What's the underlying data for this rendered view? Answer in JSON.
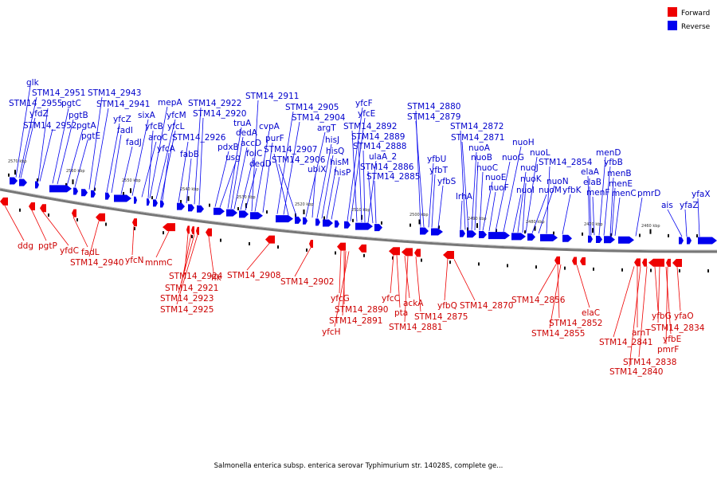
{
  "legend": {
    "forward": "Forward",
    "reverse": "Reverse",
    "forward_color": "#ee0000",
    "reverse_color": "#0000ee"
  },
  "caption": "Salmonella enterica subsp. enterica serovar Typhimurium str. 14028S, complete ge...",
  "ticks": [
    "2570 kbp",
    "2560 kbp",
    "2550 kbp",
    "2540 kbp",
    "2530 kbp",
    "2520 kbp",
    "2510 kbp",
    "2500 kbp",
    "2490 kbp",
    "2480 kbp",
    "2470 kbp",
    "2460 kbp"
  ],
  "reverse_labels": [
    "glk",
    "STM14_2951",
    "yfdZ",
    "STM14_2955",
    "pgtC",
    "pgtB",
    "STM14_2952",
    "pgtA",
    "pgtE",
    "STM14_2943",
    "STM14_2941",
    "yfcZ",
    "fadI",
    "fadJ",
    "sixA",
    "aroC",
    "yfcB",
    "mepA",
    "yfcM",
    "yfcL",
    "yfcA",
    "STM14_2926",
    "fabB",
    "STM14_2922",
    "STM14_2920",
    "truA",
    "pdxB",
    "dedA",
    "usg",
    "accD",
    "folC",
    "dedD",
    "STM14_2911",
    "cvpA",
    "purF",
    "STM14_2905",
    "STM14_2904",
    "argT",
    "STM14_2907",
    "STM14_2906",
    "hisJ",
    "hisQ",
    "ubiX",
    "hisM",
    "hisP",
    "yfcF",
    "yfcE",
    "STM14_2892",
    "STM14_2889",
    "STM14_2888",
    "ulaA_2",
    "STM14_2886",
    "STM14_2885",
    "STM14_2880",
    "STM14_2879",
    "yfbU",
    "yfbT",
    "yfbS",
    "lrhA",
    "STM14_2872",
    "STM14_2871",
    "nuoA",
    "nuoB",
    "nuoC",
    "nuoE",
    "nuoF",
    "nuoG",
    "nuoH",
    "nuoI",
    "nuoJ",
    "nuoK",
    "nuoL",
    "nuoM",
    "nuoN",
    "STM14_2854",
    "yfbK",
    "elaA",
    "elaB",
    "menF",
    "menD",
    "yfbB",
    "menB",
    "menE",
    "menC",
    "pmrD",
    "ais",
    "yfaZ",
    "yfaX"
  ],
  "forward_labels": [
    "ddg",
    "pgtP",
    "yfdC",
    "fadL",
    "STM14_2940",
    "yfcN",
    "mnmC",
    "STM14_2924",
    "STM14_2921",
    "STM14_2923",
    "STM14_2925",
    "flk",
    "STM14_2908",
    "STM14_2902",
    "yfcG",
    "STM14_2890",
    "STM14_2891",
    "yfcH",
    "yfcC",
    "pta",
    "ackA",
    "STM14_2881",
    "STM14_2875",
    "yfbQ",
    "STM14_2870",
    "STM14_2856",
    "STM14_2852",
    "STM14_2855",
    "elaC",
    "yfbG",
    "STM14_2841",
    "arnT",
    "STM14_2838",
    "yfbE",
    "pmrF",
    "yfaO",
    "STM14_2834",
    "STM14_2840"
  ]
}
